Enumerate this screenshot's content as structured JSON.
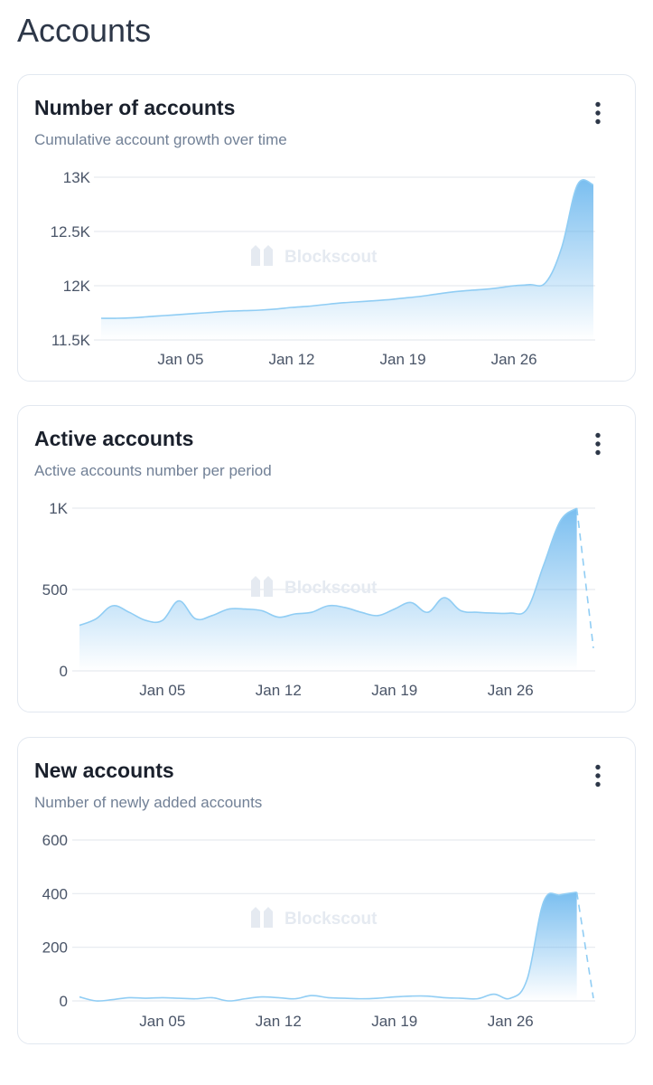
{
  "page": {
    "title": "Accounts"
  },
  "watermark": "Blockscout",
  "colors": {
    "line": "#90cdf4",
    "fill": "#63b3ed",
    "grid": "#e6eaef",
    "tick": "#4a5568",
    "subtitle": "#718096"
  },
  "menu_icon": "vertical-dots-icon",
  "chart_data": [
    {
      "type": "area",
      "title": "Number of accounts",
      "subtitle": "Cumulative account growth over time",
      "x_ticks": [
        "Jan 05",
        "Jan 12",
        "Jan 19",
        "Jan 26"
      ],
      "y_ticks": [
        "11.5K",
        "12K",
        "12.5K",
        "13K"
      ],
      "y_tick_values": [
        11500,
        12000,
        12500,
        13000
      ],
      "ylim": [
        11500,
        13000
      ],
      "xlim": [
        "Dec 31",
        "Jan 31"
      ],
      "x": [
        "Dec 31",
        "Jan 01",
        "Jan 02",
        "Jan 03",
        "Jan 04",
        "Jan 05",
        "Jan 06",
        "Jan 07",
        "Jan 08",
        "Jan 09",
        "Jan 10",
        "Jan 11",
        "Jan 12",
        "Jan 13",
        "Jan 14",
        "Jan 15",
        "Jan 16",
        "Jan 17",
        "Jan 18",
        "Jan 19",
        "Jan 20",
        "Jan 21",
        "Jan 22",
        "Jan 23",
        "Jan 24",
        "Jan 25",
        "Jan 26",
        "Jan 27",
        "Jan 28",
        "Jan 29",
        "Jan 30",
        "Jan 31"
      ],
      "values": [
        11700,
        11700,
        11705,
        11715,
        11725,
        11735,
        11745,
        11755,
        11765,
        11770,
        11775,
        11785,
        11800,
        11810,
        11825,
        11840,
        11850,
        11860,
        11870,
        11885,
        11900,
        11920,
        11940,
        11955,
        11965,
        11980,
        12000,
        12010,
        12030,
        12350,
        12930,
        12930
      ],
      "incomplete_last_point": false,
      "grid": true
    },
    {
      "type": "area",
      "title": "Active accounts",
      "subtitle": "Active accounts number per period",
      "x_ticks": [
        "Jan 05",
        "Jan 12",
        "Jan 19",
        "Jan 26"
      ],
      "y_ticks": [
        "0",
        "500",
        "1K"
      ],
      "y_tick_values": [
        0,
        500,
        1000
      ],
      "ylim": [
        0,
        1000
      ],
      "xlim": [
        "Dec 31",
        "Jan 31"
      ],
      "x": [
        "Dec 31",
        "Jan 01",
        "Jan 02",
        "Jan 03",
        "Jan 04",
        "Jan 05",
        "Jan 06",
        "Jan 07",
        "Jan 08",
        "Jan 09",
        "Jan 10",
        "Jan 11",
        "Jan 12",
        "Jan 13",
        "Jan 14",
        "Jan 15",
        "Jan 16",
        "Jan 17",
        "Jan 18",
        "Jan 19",
        "Jan 20",
        "Jan 21",
        "Jan 22",
        "Jan 23",
        "Jan 24",
        "Jan 25",
        "Jan 26",
        "Jan 27",
        "Jan 28",
        "Jan 29",
        "Jan 30",
        "Jan 31"
      ],
      "values": [
        280,
        320,
        400,
        360,
        310,
        310,
        430,
        320,
        340,
        380,
        380,
        370,
        330,
        350,
        360,
        400,
        390,
        360,
        340,
        380,
        420,
        360,
        450,
        370,
        360,
        355,
        355,
        380,
        650,
        920,
        1000,
        140
      ],
      "incomplete_last_point": true,
      "grid": true
    },
    {
      "type": "area",
      "title": "New accounts",
      "subtitle": "Number of newly added accounts",
      "x_ticks": [
        "Jan 05",
        "Jan 12",
        "Jan 19",
        "Jan 26"
      ],
      "y_ticks": [
        "0",
        "200",
        "400",
        "600"
      ],
      "y_tick_values": [
        0,
        200,
        400,
        600
      ],
      "ylim": [
        0,
        600
      ],
      "xlim": [
        "Dec 31",
        "Jan 31"
      ],
      "x": [
        "Dec 31",
        "Jan 01",
        "Jan 02",
        "Jan 03",
        "Jan 04",
        "Jan 05",
        "Jan 06",
        "Jan 07",
        "Jan 08",
        "Jan 09",
        "Jan 10",
        "Jan 11",
        "Jan 12",
        "Jan 13",
        "Jan 14",
        "Jan 15",
        "Jan 16",
        "Jan 17",
        "Jan 18",
        "Jan 19",
        "Jan 20",
        "Jan 21",
        "Jan 22",
        "Jan 23",
        "Jan 24",
        "Jan 25",
        "Jan 26",
        "Jan 27",
        "Jan 28",
        "Jan 29",
        "Jan 30",
        "Jan 31"
      ],
      "values": [
        15,
        0,
        5,
        12,
        10,
        12,
        10,
        8,
        12,
        0,
        8,
        15,
        12,
        8,
        20,
        12,
        10,
        8,
        10,
        15,
        18,
        18,
        12,
        10,
        8,
        25,
        10,
        80,
        370,
        395,
        405,
        10
      ],
      "incomplete_last_point": true,
      "grid": true
    }
  ]
}
